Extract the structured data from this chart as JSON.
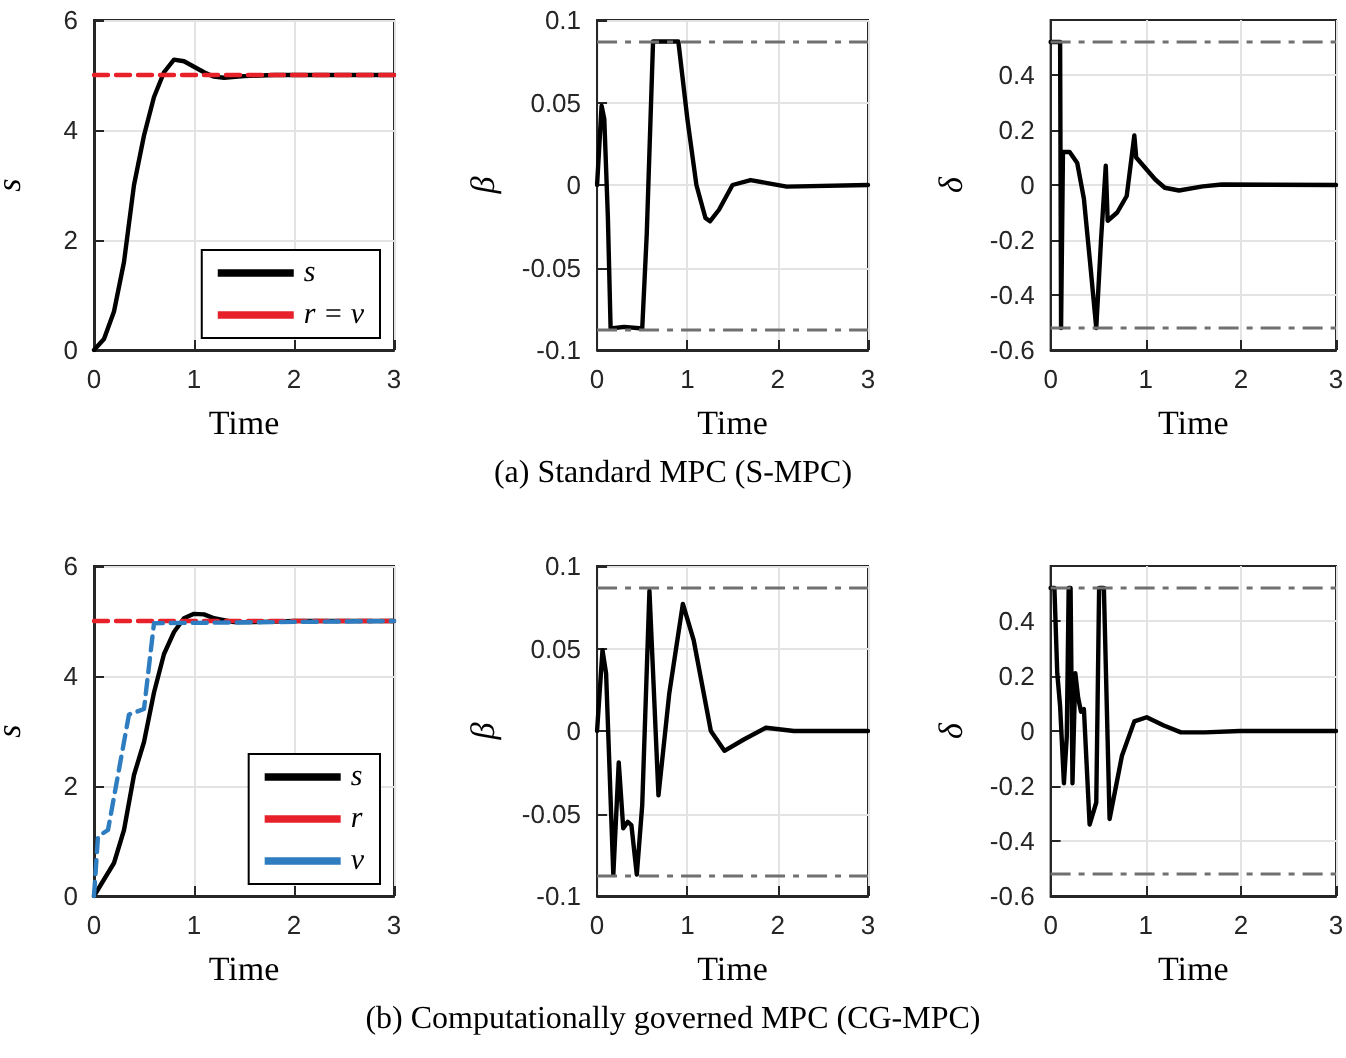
{
  "chart_data": [
    {
      "type": "line",
      "xlabel": "Time",
      "ylabel": "s",
      "xlim": [
        0,
        3
      ],
      "xticks": [
        0,
        1,
        2,
        3
      ],
      "ylim": [
        0,
        6
      ],
      "yticks": [
        0,
        2,
        4,
        6
      ],
      "grid": true,
      "legend": "bottom right",
      "marker": "none",
      "annotations": [
        "(a) Standard MPC (S-MPC)"
      ],
      "series": [
        {
          "name": "s",
          "color": "#000000",
          "line_style": "solid",
          "x": [
            0,
            0.1,
            0.2,
            0.3,
            0.4,
            0.5,
            0.6,
            0.7,
            0.8,
            0.9,
            1.0,
            1.1,
            1.2,
            1.3,
            1.5,
            1.8,
            3
          ],
          "values": [
            0,
            0.2,
            0.7,
            1.6,
            3.0,
            3.9,
            4.6,
            5.05,
            5.28,
            5.25,
            5.15,
            5.05,
            4.97,
            4.95,
            4.98,
            5.0,
            5.0
          ]
        },
        {
          "name": "r = v",
          "color": "#e8202a",
          "line_style": "dashed",
          "x": [
            0,
            3
          ],
          "values": [
            5,
            5
          ]
        }
      ]
    },
    {
      "type": "line",
      "xlabel": "Time",
      "ylabel": "β",
      "xlim": [
        0,
        3
      ],
      "xticks": [
        0,
        1,
        2,
        3
      ],
      "ylim": [
        -0.1,
        0.1
      ],
      "yticks": [
        -0.1,
        -0.05,
        0,
        0.05,
        0.1
      ],
      "grid": true,
      "legend": false,
      "marker": "none",
      "ref_lines": [
        {
          "axis": "y",
          "value": 0.087,
          "color": "#707070",
          "line_style": "dashed"
        },
        {
          "axis": "y",
          "value": -0.087,
          "color": "#707070",
          "line_style": "dashed"
        }
      ],
      "series": [
        {
          "color": "#000000",
          "line_style": "solid",
          "x": [
            0,
            0.05,
            0.08,
            0.12,
            0.15,
            0.3,
            0.5,
            0.55,
            0.62,
            0.9,
            1.0,
            1.1,
            1.2,
            1.25,
            1.35,
            1.5,
            1.7,
            1.9,
            2.1,
            3
          ],
          "values": [
            0,
            0.048,
            0.04,
            -0.02,
            -0.087,
            -0.086,
            -0.087,
            -0.03,
            0.087,
            0.087,
            0.04,
            0,
            -0.02,
            -0.022,
            -0.015,
            0,
            0.003,
            0.001,
            -0.001,
            0
          ]
        }
      ]
    },
    {
      "type": "line",
      "xlabel": "Time",
      "ylabel": "δ",
      "xlim": [
        0,
        3
      ],
      "xticks": [
        0,
        1,
        2,
        3
      ],
      "ylim": [
        -0.6,
        0.6
      ],
      "yticks": [
        -0.6,
        -0.4,
        -0.2,
        0,
        0.2,
        0.4
      ],
      "grid": true,
      "legend": false,
      "marker": "none",
      "ref_lines": [
        {
          "axis": "y",
          "value": 0.52,
          "color": "#707070",
          "line_style": "dashed"
        },
        {
          "axis": "y",
          "value": -0.52,
          "color": "#707070",
          "line_style": "dashed"
        }
      ],
      "series": [
        {
          "color": "#000000",
          "line_style": "solid",
          "x": [
            0,
            0.1,
            0.11,
            0.13,
            0.2,
            0.28,
            0.35,
            0.42,
            0.48,
            0.53,
            0.58,
            0.6,
            0.7,
            0.8,
            0.88,
            0.9,
            1.0,
            1.1,
            1.2,
            1.35,
            1.6,
            1.8,
            3
          ],
          "values": [
            0.52,
            0.52,
            -0.52,
            0.12,
            0.12,
            0.08,
            -0.05,
            -0.3,
            -0.52,
            -0.2,
            0.07,
            -0.13,
            -0.1,
            -0.04,
            0.18,
            0.1,
            0.06,
            0.02,
            -0.01,
            -0.02,
            -0.005,
            0.002,
            0
          ]
        }
      ]
    },
    {
      "type": "line",
      "xlabel": "Time",
      "ylabel": "s",
      "xlim": [
        0,
        3
      ],
      "xticks": [
        0,
        1,
        2,
        3
      ],
      "ylim": [
        0,
        6
      ],
      "yticks": [
        0,
        2,
        4,
        6
      ],
      "grid": true,
      "legend": "bottom right",
      "marker": "none",
      "annotations": [
        "(b) Computationally governed MPC (CG-MPC)"
      ],
      "series": [
        {
          "name": "s",
          "color": "#000000",
          "line_style": "solid",
          "x": [
            0,
            0.1,
            0.2,
            0.3,
            0.4,
            0.5,
            0.6,
            0.7,
            0.8,
            0.9,
            1.0,
            1.1,
            1.2,
            1.4,
            1.6,
            2.0,
            3
          ],
          "values": [
            0,
            0.3,
            0.6,
            1.2,
            2.2,
            2.8,
            3.7,
            4.4,
            4.8,
            5.05,
            5.13,
            5.12,
            5.05,
            4.98,
            4.98,
            5.0,
            5.0
          ]
        },
        {
          "name": "r",
          "color": "#e8202a",
          "line_style": "dashed",
          "x": [
            0,
            3
          ],
          "values": [
            5,
            5
          ]
        },
        {
          "name": "v",
          "color": "#2e7dc1",
          "line_style": "dashed",
          "x": [
            0,
            0.04,
            0.14,
            0.22,
            0.35,
            0.5,
            0.6,
            3
          ],
          "values": [
            0,
            1.08,
            1.2,
            2.0,
            3.3,
            3.4,
            4.96,
            5.0
          ]
        }
      ]
    },
    {
      "type": "line",
      "xlabel": "Time",
      "ylabel": "β",
      "xlim": [
        0,
        3
      ],
      "xticks": [
        0,
        1,
        2,
        3
      ],
      "ylim": [
        -0.1,
        0.1
      ],
      "yticks": [
        -0.1,
        -0.05,
        0,
        0.05,
        0.1
      ],
      "grid": true,
      "legend": false,
      "marker": "none",
      "ref_lines": [
        {
          "axis": "y",
          "value": 0.087,
          "color": "#707070",
          "line_style": "dashed"
        },
        {
          "axis": "y",
          "value": -0.087,
          "color": "#707070",
          "line_style": "dashed"
        }
      ],
      "series": [
        {
          "color": "#000000",
          "line_style": "solid",
          "x": [
            0,
            0.06,
            0.1,
            0.18,
            0.24,
            0.29,
            0.34,
            0.38,
            0.44,
            0.5,
            0.58,
            0.68,
            0.8,
            0.95,
            1.07,
            1.26,
            1.41,
            1.63,
            1.87,
            2.18,
            3
          ],
          "values": [
            0,
            0.049,
            0.035,
            -0.087,
            -0.019,
            -0.059,
            -0.055,
            -0.057,
            -0.087,
            -0.045,
            0.085,
            -0.039,
            0.023,
            0.077,
            0.055,
            0,
            -0.012,
            -0.005,
            0.002,
            0,
            0
          ]
        }
      ]
    },
    {
      "type": "line",
      "xlabel": "Time",
      "ylabel": "δ",
      "xlim": [
        0,
        3
      ],
      "xticks": [
        0,
        1,
        2,
        3
      ],
      "ylim": [
        -0.6,
        0.6
      ],
      "yticks": [
        -0.6,
        -0.4,
        -0.2,
        0,
        0.2,
        0.4
      ],
      "grid": true,
      "legend": false,
      "marker": "none",
      "ref_lines": [
        {
          "axis": "y",
          "value": 0.52,
          "color": "#707070",
          "line_style": "dashed"
        },
        {
          "axis": "y",
          "value": -0.52,
          "color": "#707070",
          "line_style": "dashed"
        }
      ],
      "series": [
        {
          "color": "#000000",
          "line_style": "solid",
          "x": [
            0,
            0.04,
            0.07,
            0.1,
            0.14,
            0.17,
            0.19,
            0.21,
            0.23,
            0.26,
            0.29,
            0.32,
            0.35,
            0.41,
            0.48,
            0.51,
            0.56,
            0.62,
            0.75,
            0.88,
            1.01,
            1.19,
            1.37,
            1.62,
            1.99,
            3
          ],
          "values": [
            0.52,
            0.52,
            0.21,
            0.09,
            -0.19,
            -0.02,
            0.52,
            0.52,
            -0.19,
            0.21,
            0.12,
            0.07,
            0.08,
            -0.34,
            -0.26,
            0.52,
            0.52,
            -0.32,
            -0.09,
            0.035,
            0.05,
            0.02,
            -0.005,
            -0.005,
            0,
            0
          ]
        }
      ]
    }
  ]
}
